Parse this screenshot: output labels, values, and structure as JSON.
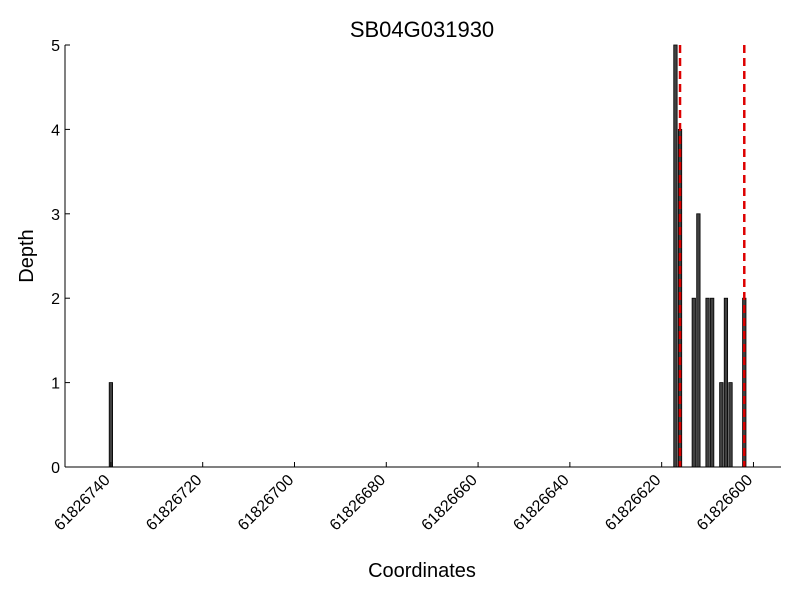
{
  "chart_data": {
    "type": "bar",
    "title": "SB04G031930",
    "xlabel": "Coordinates",
    "ylabel": "Depth",
    "x_axis_reversed": true,
    "xlim": [
      61826750,
      61826594
    ],
    "ylim": [
      0,
      5
    ],
    "xticks": [
      61826740,
      61826720,
      61826700,
      61826680,
      61826660,
      61826640,
      61826620,
      61826600
    ],
    "yticks": [
      0,
      1,
      2,
      3,
      4,
      5
    ],
    "bar_color": "#404040",
    "bars": [
      {
        "x": 61826740,
        "depth": 1
      },
      {
        "x": 61826617,
        "depth": 5
      },
      {
        "x": 61826616,
        "depth": 4
      },
      {
        "x": 61826613,
        "depth": 2
      },
      {
        "x": 61826612,
        "depth": 3
      },
      {
        "x": 61826610,
        "depth": 2
      },
      {
        "x": 61826609,
        "depth": 2
      },
      {
        "x": 61826607,
        "depth": 1
      },
      {
        "x": 61826606,
        "depth": 2
      },
      {
        "x": 61826605,
        "depth": 1
      },
      {
        "x": 61826602,
        "depth": 2
      }
    ],
    "reference_lines": {
      "style": "dashed",
      "color": "#dd0000",
      "x": [
        61826616,
        61826602
      ]
    },
    "grid": false,
    "legend": null
  }
}
